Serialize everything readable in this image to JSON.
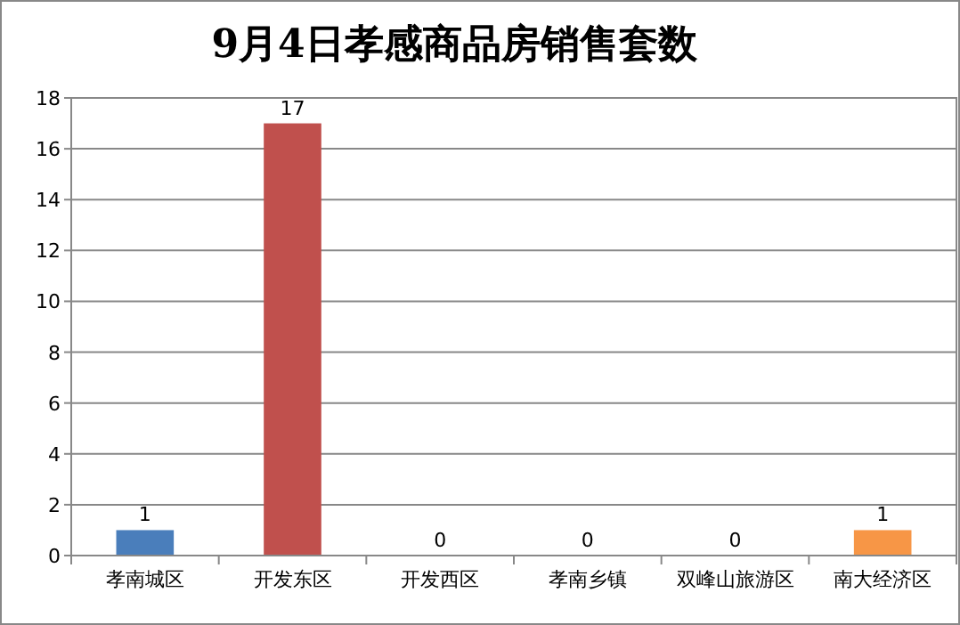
{
  "chart_data": {
    "type": "bar",
    "title": "9月4日孝感商品房销售套数",
    "categories": [
      "孝南城区",
      "开发东区",
      "开发西区",
      "孝南乡镇",
      "双峰山旅游区",
      "南大经济区"
    ],
    "values": [
      1,
      17,
      0,
      0,
      0,
      1
    ],
    "colors": [
      "#4a7ebb",
      "#c0504d",
      "#9bbb59",
      "#8064a2",
      "#4bacc6",
      "#f79646"
    ],
    "ylim": [
      0,
      18
    ],
    "yticks": [
      0,
      2,
      4,
      6,
      8,
      10,
      12,
      14,
      16,
      18
    ],
    "grid": "y",
    "data_labels": true
  }
}
